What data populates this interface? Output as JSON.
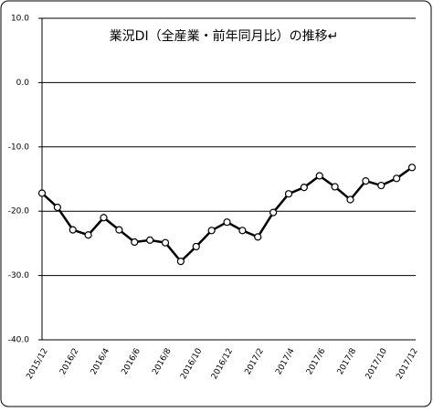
{
  "chart_data": {
    "type": "line",
    "title": "業況DI（全産業・前年同月比）の推移↵",
    "categories": [
      "2015/12",
      null,
      "2016/2",
      null,
      "2016/4",
      null,
      "2016/6",
      null,
      "2016/8",
      null,
      "2016/10",
      null,
      "2016/12",
      null,
      "2017/2",
      null,
      "2017/4",
      null,
      "2017/6",
      null,
      "2017/8",
      null,
      "2017/10",
      null,
      "2017/12"
    ],
    "series": [
      {
        "color": "#000000",
        "values": [
          -17.2,
          -19.4,
          -22.9,
          -23.7,
          -21.0,
          -22.9,
          -24.8,
          -24.5,
          -24.9,
          -27.8,
          -25.5,
          -23.0,
          -21.7,
          -23.0,
          -24.0,
          -20.2,
          -17.3,
          -16.3,
          -14.5,
          -16.2,
          -18.2,
          -15.3,
          -16.0,
          -14.9,
          -13.2
        ]
      }
    ],
    "ylim": [
      -40,
      10
    ],
    "yticks": [
      {
        "value": 10,
        "label": "10.0"
      },
      {
        "value": 0,
        "label": "0.0"
      },
      {
        "value": -10,
        "label": "-10.0"
      },
      {
        "value": -20,
        "label": "-20.0"
      },
      {
        "value": -30,
        "label": "-30.0"
      },
      {
        "value": -40,
        "label": "-40.0"
      }
    ],
    "grid": true
  }
}
